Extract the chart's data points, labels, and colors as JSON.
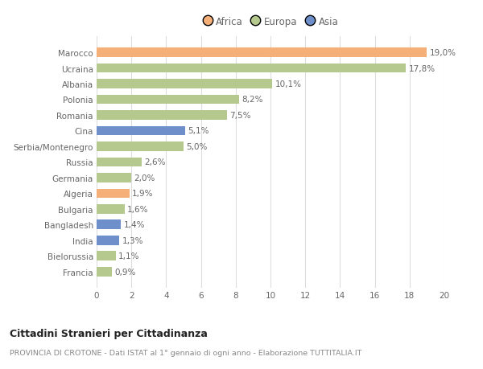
{
  "categories": [
    "Francia",
    "Bielorussia",
    "India",
    "Bangladesh",
    "Bulgaria",
    "Algeria",
    "Germania",
    "Russia",
    "Serbia/Montenegro",
    "Cina",
    "Romania",
    "Polonia",
    "Albania",
    "Ucraina",
    "Marocco"
  ],
  "values": [
    0.9,
    1.1,
    1.3,
    1.4,
    1.6,
    1.9,
    2.0,
    2.6,
    5.0,
    5.1,
    7.5,
    8.2,
    10.1,
    17.8,
    19.0
  ],
  "labels": [
    "0,9%",
    "1,1%",
    "1,3%",
    "1,4%",
    "1,6%",
    "1,9%",
    "2,0%",
    "2,6%",
    "5,0%",
    "5,1%",
    "7,5%",
    "8,2%",
    "10,1%",
    "17,8%",
    "19,0%"
  ],
  "colors": [
    "#b5c98e",
    "#b5c98e",
    "#6e8fc9",
    "#6e8fc9",
    "#b5c98e",
    "#f5b07a",
    "#b5c98e",
    "#b5c98e",
    "#b5c98e",
    "#6e8fc9",
    "#b5c98e",
    "#b5c98e",
    "#b5c98e",
    "#b5c98e",
    "#f5b07a"
  ],
  "legend_items": [
    {
      "label": "Africa",
      "color": "#f5b07a"
    },
    {
      "label": "Europa",
      "color": "#b5c98e"
    },
    {
      "label": "Asia",
      "color": "#6e8fc9"
    }
  ],
  "xlim": [
    0,
    20
  ],
  "xticks": [
    0,
    2,
    4,
    6,
    8,
    10,
    12,
    14,
    16,
    18,
    20
  ],
  "title": "Cittadini Stranieri per Cittadinanza",
  "subtitle": "PROVINCIA DI CROTONE - Dati ISTAT al 1° gennaio di ogni anno - Elaborazione TUTTITALIA.IT",
  "bg_color": "#ffffff",
  "grid_color": "#dddddd",
  "text_color": "#666666",
  "title_color": "#222222",
  "subtitle_color": "#888888"
}
